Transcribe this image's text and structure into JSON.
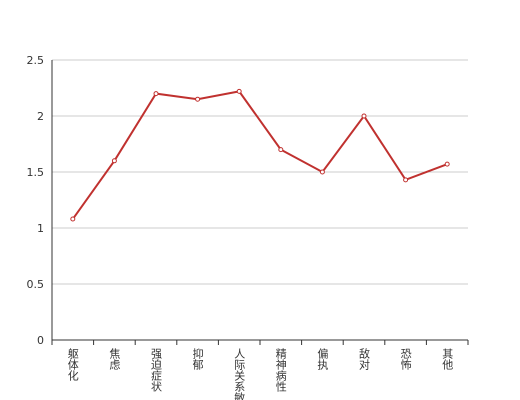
{
  "chart_data": {
    "type": "line",
    "categories": [
      "躯体化",
      "焦虑",
      "强迫症状",
      "抑郁",
      "人际关系敏感",
      "精神病性",
      "偏执",
      "敌对",
      "恐怖",
      "其他"
    ],
    "series": [
      {
        "color": "#c0312f",
        "values": [
          1.08,
          1.6,
          2.2,
          2.15,
          2.22,
          1.7,
          1.5,
          2.0,
          1.43,
          1.57
        ]
      }
    ],
    "ylim": [
      0,
      2.5
    ],
    "yticks": [
      0,
      0.5,
      1,
      1.5,
      2,
      2.5
    ],
    "grid": true
  }
}
